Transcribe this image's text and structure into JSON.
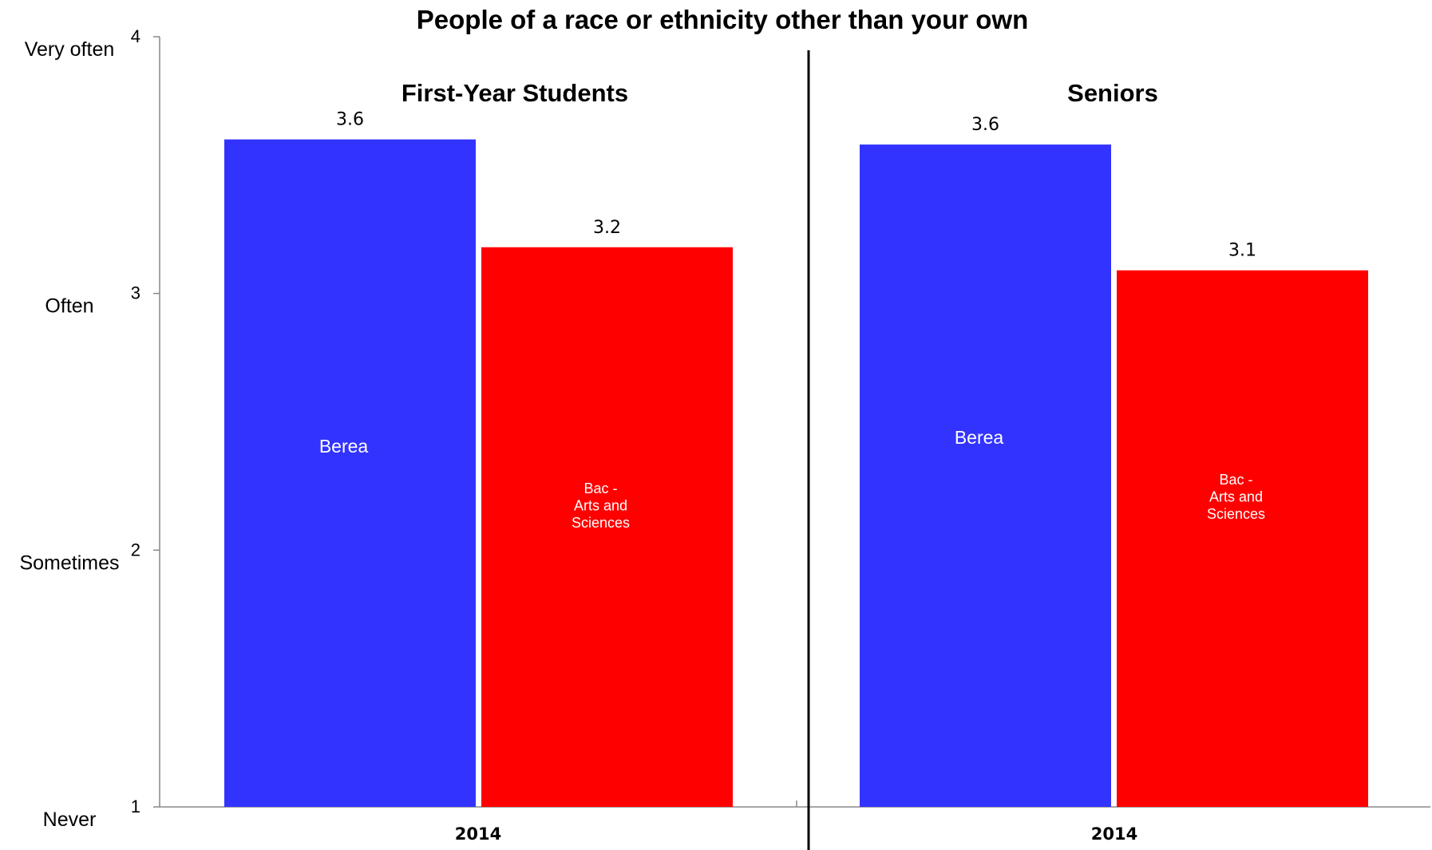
{
  "chart_data": {
    "type": "bar",
    "title": "People of a race or ethnicity other than your own",
    "ylim": [
      1,
      4
    ],
    "y_ticks": [
      "1",
      "2",
      "3",
      "4"
    ],
    "y_scale_labels": [
      "Never",
      "Sometimes",
      "Often",
      "Very often"
    ],
    "grid": false,
    "panels": [
      {
        "title": "First-Year Students",
        "x_label": "2014",
        "bars": [
          {
            "label": "Berea",
            "value": 3.6,
            "value_label": "3.6",
            "color": "#3333ff"
          },
          {
            "label": "Bac - Arts and Sciences",
            "value": 3.18,
            "value_label": "3.2",
            "color": "#ff0000"
          }
        ]
      },
      {
        "title": "Seniors",
        "x_label": "2014",
        "bars": [
          {
            "label": "Berea",
            "value": 3.58,
            "value_label": "3.6",
            "color": "#3333ff"
          },
          {
            "label": "Bac - Arts and Sciences",
            "value": 3.09,
            "value_label": "3.1",
            "color": "#ff0000"
          }
        ]
      }
    ]
  }
}
